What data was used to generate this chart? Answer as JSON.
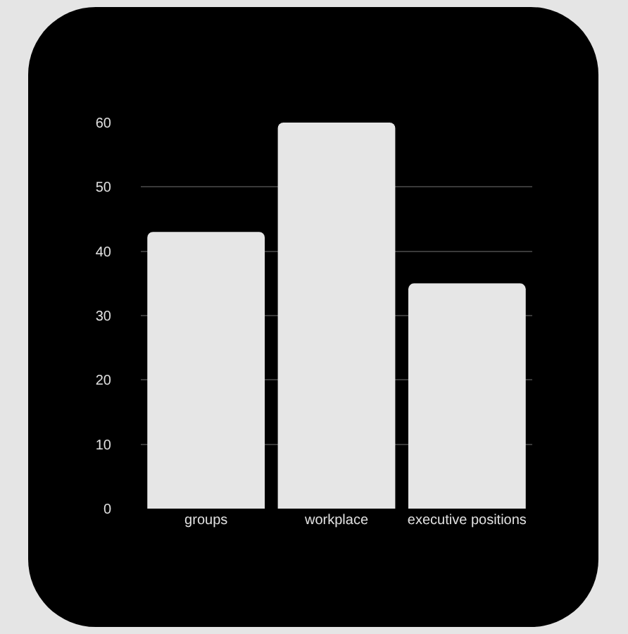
{
  "chart_data": {
    "type": "bar",
    "categories": [
      "groups",
      "workplace",
      "executive positions"
    ],
    "values": [
      43,
      60,
      35
    ],
    "color": "#e6e6e6",
    "ylim": [
      0,
      60
    ],
    "yticks": [
      0,
      10,
      20,
      30,
      40,
      50,
      60
    ],
    "grid": "y"
  }
}
